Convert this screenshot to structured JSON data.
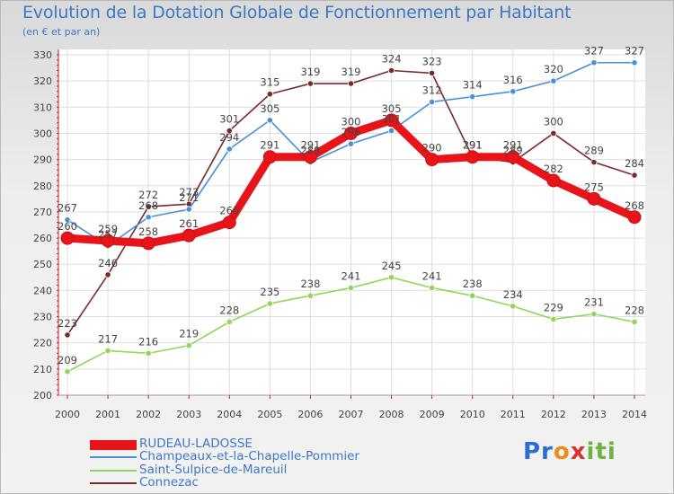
{
  "title": "Evolution de la Dotation Globale de Fonctionnement par Habitant",
  "subtitle": "(en € et par an)",
  "logo": "Proxiti",
  "chart_data": {
    "type": "line",
    "title": "Evolution de la Dotation Globale de Fonctionnement par Habitant",
    "subtitle": "(en € et par an)",
    "x": [
      2000,
      2001,
      2002,
      2003,
      2004,
      2005,
      2006,
      2007,
      2008,
      2009,
      2010,
      2011,
      2012,
      2013,
      2014
    ],
    "ylim": [
      200,
      330
    ],
    "yticks": [
      200,
      210,
      220,
      230,
      240,
      250,
      260,
      270,
      280,
      290,
      300,
      310,
      320,
      330
    ],
    "grid": true,
    "legend_position": "bottom-left",
    "series": [
      {
        "name": "RUDEAU-LADOSSE",
        "color": "#e8141a",
        "values": [
          260,
          259,
          258,
          261,
          266,
          291,
          291,
          300,
          305,
          290,
          291,
          291,
          282,
          275,
          268
        ]
      },
      {
        "name": "Champeaux-et-la-Chapelle-Pommier",
        "color": "#4a90d8",
        "values": [
          267,
          257,
          268,
          271,
          294,
          305,
          289,
          296,
          301,
          312,
          314,
          316,
          320,
          327,
          327
        ]
      },
      {
        "name": "Saint-Sulpice-de-Mareuil",
        "color": "#8fd65a",
        "values": [
          209,
          217,
          216,
          219,
          228,
          235,
          238,
          241,
          245,
          241,
          238,
          234,
          229,
          231,
          228
        ]
      },
      {
        "name": "Connezac",
        "color": "#7a2a2a",
        "values": [
          223,
          246,
          272,
          273,
          301,
          315,
          319,
          319,
          324,
          323,
          291,
          289,
          300,
          289,
          284
        ]
      }
    ]
  }
}
